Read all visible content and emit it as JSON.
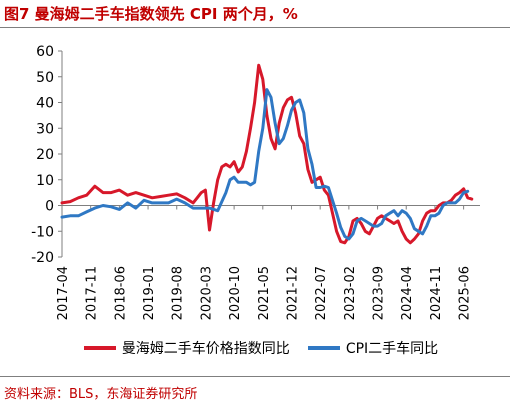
{
  "header": {
    "title": "图7 曼海姆二手车指数领先 CPI 两个月，%"
  },
  "footer": {
    "source": "资料来源：BLS，东海证券研究所"
  },
  "chart_data": {
    "type": "line",
    "title": "图7 曼海姆二手车指数领先 CPI 两个月，%",
    "xlabel": "",
    "ylabel": "",
    "ylim": [
      -20,
      60
    ],
    "yticks": [
      -20,
      -10,
      0,
      10,
      20,
      30,
      40,
      50,
      60
    ],
    "xlim": [
      "2017-04",
      "2025-10"
    ],
    "xticks": [
      "2017-04",
      "2017-11",
      "2018-06",
      "2019-01",
      "2019-08",
      "2020-03",
      "2020-10",
      "2021-05",
      "2021-12",
      "2022-07",
      "2023-02",
      "2023-09",
      "2024-04",
      "2024-11",
      "2025-06"
    ],
    "grid": false,
    "legend": "bottom",
    "series": [
      {
        "name": "曼海姆二手车价格指数同比",
        "color": "#d7182a",
        "points": [
          [
            "2017-04",
            1
          ],
          [
            "2017-06",
            1.5
          ],
          [
            "2017-08",
            3
          ],
          [
            "2017-10",
            4
          ],
          [
            "2017-12",
            7.5
          ],
          [
            "2018-02",
            5
          ],
          [
            "2018-04",
            5
          ],
          [
            "2018-06",
            6
          ],
          [
            "2018-08",
            4
          ],
          [
            "2018-10",
            5
          ],
          [
            "2018-12",
            4
          ],
          [
            "2019-02",
            3
          ],
          [
            "2019-04",
            3.5
          ],
          [
            "2019-06",
            4
          ],
          [
            "2019-08",
            4.5
          ],
          [
            "2019-10",
            3
          ],
          [
            "2019-12",
            1
          ],
          [
            "2020-01",
            3
          ],
          [
            "2020-02",
            5
          ],
          [
            "2020-03",
            6
          ],
          [
            "2020-04",
            -9.5
          ],
          [
            "2020-05",
            1
          ],
          [
            "2020-06",
            10
          ],
          [
            "2020-07",
            15
          ],
          [
            "2020-08",
            16
          ],
          [
            "2020-09",
            15
          ],
          [
            "2020-10",
            17
          ],
          [
            "2020-11",
            13
          ],
          [
            "2020-12",
            15
          ],
          [
            "2021-01",
            21
          ],
          [
            "2021-02",
            30
          ],
          [
            "2021-03",
            40
          ],
          [
            "2021-04",
            54.5
          ],
          [
            "2021-05",
            49
          ],
          [
            "2021-06",
            35
          ],
          [
            "2021-07",
            26
          ],
          [
            "2021-08",
            22
          ],
          [
            "2021-09",
            32
          ],
          [
            "2021-10",
            38
          ],
          [
            "2021-11",
            41
          ],
          [
            "2021-12",
            42
          ],
          [
            "2022-01",
            36
          ],
          [
            "2022-02",
            27
          ],
          [
            "2022-03",
            24
          ],
          [
            "2022-04",
            14
          ],
          [
            "2022-05",
            9
          ],
          [
            "2022-06",
            10
          ],
          [
            "2022-07",
            11
          ],
          [
            "2022-08",
            6
          ],
          [
            "2022-09",
            4
          ],
          [
            "2022-10",
            -3
          ],
          [
            "2022-11",
            -10
          ],
          [
            "2022-12",
            -14
          ],
          [
            "2023-01",
            -14.5
          ],
          [
            "2023-02",
            -12
          ],
          [
            "2023-03",
            -6
          ],
          [
            "2023-04",
            -5
          ],
          [
            "2023-05",
            -7
          ],
          [
            "2023-06",
            -10
          ],
          [
            "2023-07",
            -11
          ],
          [
            "2023-08",
            -8
          ],
          [
            "2023-09",
            -5
          ],
          [
            "2023-10",
            -4
          ],
          [
            "2023-11",
            -5
          ],
          [
            "2023-12",
            -6
          ],
          [
            "2024-01",
            -7
          ],
          [
            "2024-02",
            -6
          ],
          [
            "2024-03",
            -10
          ],
          [
            "2024-04",
            -13
          ],
          [
            "2024-05",
            -14.5
          ],
          [
            "2024-06",
            -13
          ],
          [
            "2024-07",
            -11
          ],
          [
            "2024-08",
            -6
          ],
          [
            "2024-09",
            -3
          ],
          [
            "2024-10",
            -2
          ],
          [
            "2024-11",
            -2
          ],
          [
            "2024-12",
            0
          ],
          [
            "2025-01",
            1
          ],
          [
            "2025-02",
            1
          ],
          [
            "2025-03",
            2
          ],
          [
            "2025-04",
            4
          ],
          [
            "2025-05",
            5
          ],
          [
            "2025-06",
            6.5
          ],
          [
            "2025-07",
            3
          ],
          [
            "2025-08",
            2.5
          ]
        ]
      },
      {
        "name": "CPI二手车同比",
        "color": "#2f78c4",
        "points": [
          [
            "2017-04",
            -4.5
          ],
          [
            "2017-06",
            -4
          ],
          [
            "2017-08",
            -4
          ],
          [
            "2017-10",
            -2.5
          ],
          [
            "2017-12",
            -1
          ],
          [
            "2018-02",
            0
          ],
          [
            "2018-04",
            -0.5
          ],
          [
            "2018-06",
            -1.5
          ],
          [
            "2018-08",
            1
          ],
          [
            "2018-10",
            -1
          ],
          [
            "2018-12",
            2
          ],
          [
            "2019-02",
            1
          ],
          [
            "2019-04",
            1
          ],
          [
            "2019-06",
            1
          ],
          [
            "2019-08",
            2.5
          ],
          [
            "2019-10",
            1
          ],
          [
            "2019-12",
            -1
          ],
          [
            "2020-02",
            -1
          ],
          [
            "2020-04",
            -1
          ],
          [
            "2020-06",
            -2
          ],
          [
            "2020-08",
            5
          ],
          [
            "2020-09",
            10
          ],
          [
            "2020-10",
            11
          ],
          [
            "2020-11",
            9
          ],
          [
            "2020-12",
            9
          ],
          [
            "2021-01",
            9
          ],
          [
            "2021-02",
            8
          ],
          [
            "2021-03",
            9
          ],
          [
            "2021-04",
            21
          ],
          [
            "2021-05",
            30
          ],
          [
            "2021-06",
            45
          ],
          [
            "2021-07",
            42
          ],
          [
            "2021-08",
            32
          ],
          [
            "2021-09",
            24
          ],
          [
            "2021-10",
            26
          ],
          [
            "2021-11",
            31
          ],
          [
            "2021-12",
            37
          ],
          [
            "2022-01",
            40
          ],
          [
            "2022-02",
            41
          ],
          [
            "2022-03",
            36
          ],
          [
            "2022-04",
            22
          ],
          [
            "2022-05",
            16
          ],
          [
            "2022-06",
            7
          ],
          [
            "2022-07",
            7
          ],
          [
            "2022-08",
            7.5
          ],
          [
            "2022-09",
            7
          ],
          [
            "2022-10",
            2
          ],
          [
            "2022-11",
            -3
          ],
          [
            "2022-12",
            -8.5
          ],
          [
            "2023-01",
            -12
          ],
          [
            "2023-02",
            -13
          ],
          [
            "2023-03",
            -11
          ],
          [
            "2023-04",
            -6
          ],
          [
            "2023-05",
            -5
          ],
          [
            "2023-06",
            -6
          ],
          [
            "2023-07",
            -7
          ],
          [
            "2023-08",
            -8
          ],
          [
            "2023-09",
            -8
          ],
          [
            "2023-10",
            -7
          ],
          [
            "2023-11",
            -4
          ],
          [
            "2023-12",
            -3
          ],
          [
            "2024-01",
            -2
          ],
          [
            "2024-02",
            -4
          ],
          [
            "2024-03",
            -2
          ],
          [
            "2024-04",
            -3
          ],
          [
            "2024-05",
            -5
          ],
          [
            "2024-06",
            -9
          ],
          [
            "2024-07",
            -10
          ],
          [
            "2024-08",
            -11
          ],
          [
            "2024-09",
            -8
          ],
          [
            "2024-10",
            -4
          ],
          [
            "2024-11",
            -4
          ],
          [
            "2024-12",
            -3
          ],
          [
            "2025-01",
            0
          ],
          [
            "2025-02",
            1
          ],
          [
            "2025-03",
            1
          ],
          [
            "2025-04",
            1
          ],
          [
            "2025-05",
            2.5
          ],
          [
            "2025-06",
            5
          ],
          [
            "2025-07",
            5.5
          ]
        ]
      }
    ]
  }
}
